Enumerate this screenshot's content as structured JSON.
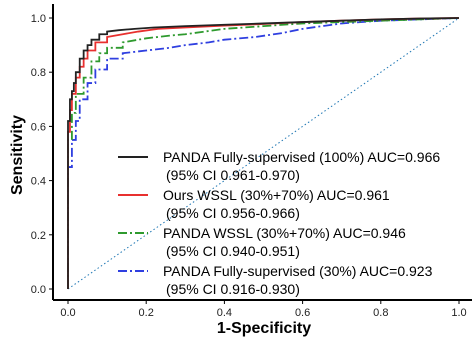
{
  "chart_data": {
    "type": "line",
    "title": "",
    "xlabel": "1-Specificity",
    "ylabel": "Sensitivity",
    "xlim": [
      0,
      1
    ],
    "ylim": [
      0,
      1
    ],
    "xticks": [
      "0.0",
      "0.2",
      "0.4",
      "0.6",
      "0.8",
      "1.0"
    ],
    "yticks": [
      "0.0",
      "0.2",
      "0.4",
      "0.6",
      "0.8",
      "1.0"
    ],
    "grid": false,
    "legend_position": "bottom-right",
    "reference_line": {
      "x": [
        0,
        1
      ],
      "y": [
        0,
        1
      ],
      "color": "#1f77b4",
      "style": "dotted"
    },
    "series": [
      {
        "name": "PANDA Fully-supervised (100%) AUC=0.966",
        "ci": "(95% CI 0.961-0.970)",
        "color": "#222222",
        "style": "solid",
        "x": [
          0,
          0,
          0.005,
          0.005,
          0.01,
          0.01,
          0.015,
          0.015,
          0.02,
          0.02,
          0.03,
          0.03,
          0.04,
          0.04,
          0.05,
          0.05,
          0.06,
          0.06,
          0.08,
          0.08,
          0.1,
          0.1,
          0.13,
          0.17,
          0.22,
          0.3,
          0.4,
          0.5,
          0.6,
          0.7,
          0.8,
          0.9,
          1.0
        ],
        "y": [
          0,
          0.62,
          0.62,
          0.7,
          0.7,
          0.73,
          0.73,
          0.76,
          0.76,
          0.8,
          0.8,
          0.85,
          0.85,
          0.88,
          0.88,
          0.9,
          0.9,
          0.92,
          0.92,
          0.94,
          0.94,
          0.95,
          0.955,
          0.96,
          0.965,
          0.97,
          0.975,
          0.98,
          0.985,
          0.99,
          0.995,
          0.998,
          1.0
        ]
      },
      {
        "name": "Ours WSSL (30%+70%) AUC=0.961",
        "ci": "(95% CI 0.956-0.966)",
        "color": "#e8302f",
        "style": "solid",
        "x": [
          0,
          0,
          0.005,
          0.005,
          0.01,
          0.01,
          0.02,
          0.02,
          0.03,
          0.03,
          0.04,
          0.04,
          0.05,
          0.05,
          0.07,
          0.07,
          0.1,
          0.1,
          0.14,
          0.18,
          0.23,
          0.3,
          0.4,
          0.5,
          0.6,
          0.7,
          0.8,
          0.9,
          1.0
        ],
        "y": [
          0,
          0.58,
          0.58,
          0.66,
          0.66,
          0.72,
          0.72,
          0.78,
          0.78,
          0.82,
          0.82,
          0.85,
          0.85,
          0.88,
          0.88,
          0.91,
          0.91,
          0.93,
          0.94,
          0.95,
          0.96,
          0.965,
          0.972,
          0.978,
          0.985,
          0.99,
          0.995,
          0.998,
          1.0
        ]
      },
      {
        "name": "PANDA WSSL (30%+70%) AUC=0.946",
        "ci": "(95% CI 0.940-0.951)",
        "color": "#2e9a2e",
        "style": "dashdot",
        "x": [
          0,
          0,
          0.01,
          0.01,
          0.02,
          0.02,
          0.04,
          0.04,
          0.06,
          0.06,
          0.08,
          0.08,
          0.1,
          0.1,
          0.14,
          0.14,
          0.2,
          0.26,
          0.3,
          0.35,
          0.4,
          0.5,
          0.6,
          0.7,
          0.8,
          0.9,
          1.0
        ],
        "y": [
          0,
          0.55,
          0.55,
          0.65,
          0.65,
          0.72,
          0.72,
          0.78,
          0.78,
          0.84,
          0.84,
          0.87,
          0.87,
          0.89,
          0.89,
          0.91,
          0.925,
          0.935,
          0.94,
          0.95,
          0.96,
          0.97,
          0.98,
          0.985,
          0.99,
          0.995,
          1.0
        ]
      },
      {
        "name": "PANDA Fully-supervised (30%) AUC=0.923",
        "ci": "(95% CI 0.916-0.930)",
        "color": "#2f3fe0",
        "style": "dashdot",
        "x": [
          0,
          0,
          0.01,
          0.01,
          0.02,
          0.02,
          0.03,
          0.03,
          0.05,
          0.05,
          0.07,
          0.07,
          0.1,
          0.1,
          0.14,
          0.14,
          0.2,
          0.26,
          0.3,
          0.36,
          0.4,
          0.48,
          0.55,
          0.6,
          0.65,
          0.7,
          0.8,
          0.9,
          1.0
        ],
        "y": [
          0,
          0.45,
          0.45,
          0.55,
          0.55,
          0.62,
          0.62,
          0.7,
          0.7,
          0.76,
          0.76,
          0.81,
          0.81,
          0.85,
          0.85,
          0.87,
          0.88,
          0.89,
          0.9,
          0.91,
          0.92,
          0.93,
          0.945,
          0.96,
          0.97,
          0.98,
          0.99,
          0.995,
          1.0
        ]
      }
    ]
  }
}
